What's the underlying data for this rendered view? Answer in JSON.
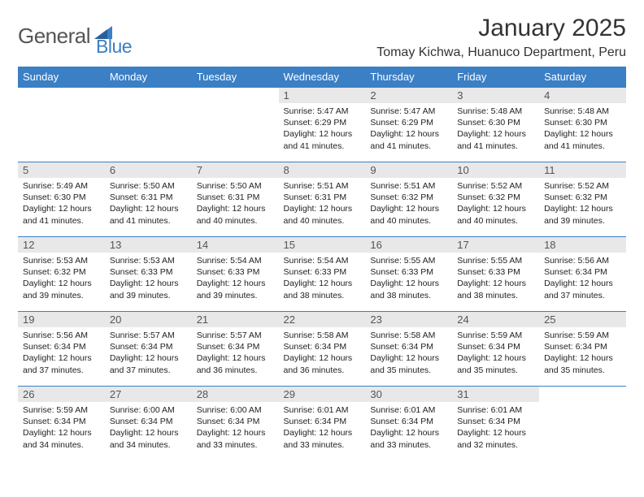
{
  "brand": {
    "part1": "General",
    "part2": "Blue"
  },
  "colors": {
    "brand_blue": "#3b7fc4",
    "header_bg": "#3b7fc4",
    "header_text": "#ffffff",
    "daynum_bg": "#e8e8e8",
    "daynum_text": "#555555",
    "body_text": "#222222",
    "page_bg": "#ffffff"
  },
  "title": "January 2025",
  "location": "Tomay Kichwa, Huanuco Department, Peru",
  "weekdays": [
    "Sunday",
    "Monday",
    "Tuesday",
    "Wednesday",
    "Thursday",
    "Friday",
    "Saturday"
  ],
  "layout": {
    "first_weekday_index": 3,
    "days_in_month": 31
  },
  "days": {
    "1": {
      "sunrise": "5:47 AM",
      "sunset": "6:29 PM",
      "daylight": "12 hours and 41 minutes."
    },
    "2": {
      "sunrise": "5:47 AM",
      "sunset": "6:29 PM",
      "daylight": "12 hours and 41 minutes."
    },
    "3": {
      "sunrise": "5:48 AM",
      "sunset": "6:30 PM",
      "daylight": "12 hours and 41 minutes."
    },
    "4": {
      "sunrise": "5:48 AM",
      "sunset": "6:30 PM",
      "daylight": "12 hours and 41 minutes."
    },
    "5": {
      "sunrise": "5:49 AM",
      "sunset": "6:30 PM",
      "daylight": "12 hours and 41 minutes."
    },
    "6": {
      "sunrise": "5:50 AM",
      "sunset": "6:31 PM",
      "daylight": "12 hours and 41 minutes."
    },
    "7": {
      "sunrise": "5:50 AM",
      "sunset": "6:31 PM",
      "daylight": "12 hours and 40 minutes."
    },
    "8": {
      "sunrise": "5:51 AM",
      "sunset": "6:31 PM",
      "daylight": "12 hours and 40 minutes."
    },
    "9": {
      "sunrise": "5:51 AM",
      "sunset": "6:32 PM",
      "daylight": "12 hours and 40 minutes."
    },
    "10": {
      "sunrise": "5:52 AM",
      "sunset": "6:32 PM",
      "daylight": "12 hours and 40 minutes."
    },
    "11": {
      "sunrise": "5:52 AM",
      "sunset": "6:32 PM",
      "daylight": "12 hours and 39 minutes."
    },
    "12": {
      "sunrise": "5:53 AM",
      "sunset": "6:32 PM",
      "daylight": "12 hours and 39 minutes."
    },
    "13": {
      "sunrise": "5:53 AM",
      "sunset": "6:33 PM",
      "daylight": "12 hours and 39 minutes."
    },
    "14": {
      "sunrise": "5:54 AM",
      "sunset": "6:33 PM",
      "daylight": "12 hours and 39 minutes."
    },
    "15": {
      "sunrise": "5:54 AM",
      "sunset": "6:33 PM",
      "daylight": "12 hours and 38 minutes."
    },
    "16": {
      "sunrise": "5:55 AM",
      "sunset": "6:33 PM",
      "daylight": "12 hours and 38 minutes."
    },
    "17": {
      "sunrise": "5:55 AM",
      "sunset": "6:33 PM",
      "daylight": "12 hours and 38 minutes."
    },
    "18": {
      "sunrise": "5:56 AM",
      "sunset": "6:34 PM",
      "daylight": "12 hours and 37 minutes."
    },
    "19": {
      "sunrise": "5:56 AM",
      "sunset": "6:34 PM",
      "daylight": "12 hours and 37 minutes."
    },
    "20": {
      "sunrise": "5:57 AM",
      "sunset": "6:34 PM",
      "daylight": "12 hours and 37 minutes."
    },
    "21": {
      "sunrise": "5:57 AM",
      "sunset": "6:34 PM",
      "daylight": "12 hours and 36 minutes."
    },
    "22": {
      "sunrise": "5:58 AM",
      "sunset": "6:34 PM",
      "daylight": "12 hours and 36 minutes."
    },
    "23": {
      "sunrise": "5:58 AM",
      "sunset": "6:34 PM",
      "daylight": "12 hours and 35 minutes."
    },
    "24": {
      "sunrise": "5:59 AM",
      "sunset": "6:34 PM",
      "daylight": "12 hours and 35 minutes."
    },
    "25": {
      "sunrise": "5:59 AM",
      "sunset": "6:34 PM",
      "daylight": "12 hours and 35 minutes."
    },
    "26": {
      "sunrise": "5:59 AM",
      "sunset": "6:34 PM",
      "daylight": "12 hours and 34 minutes."
    },
    "27": {
      "sunrise": "6:00 AM",
      "sunset": "6:34 PM",
      "daylight": "12 hours and 34 minutes."
    },
    "28": {
      "sunrise": "6:00 AM",
      "sunset": "6:34 PM",
      "daylight": "12 hours and 33 minutes."
    },
    "29": {
      "sunrise": "6:01 AM",
      "sunset": "6:34 PM",
      "daylight": "12 hours and 33 minutes."
    },
    "30": {
      "sunrise": "6:01 AM",
      "sunset": "6:34 PM",
      "daylight": "12 hours and 33 minutes."
    },
    "31": {
      "sunrise": "6:01 AM",
      "sunset": "6:34 PM",
      "daylight": "12 hours and 32 minutes."
    }
  },
  "labels": {
    "sunrise": "Sunrise:",
    "sunset": "Sunset:",
    "daylight": "Daylight:"
  }
}
